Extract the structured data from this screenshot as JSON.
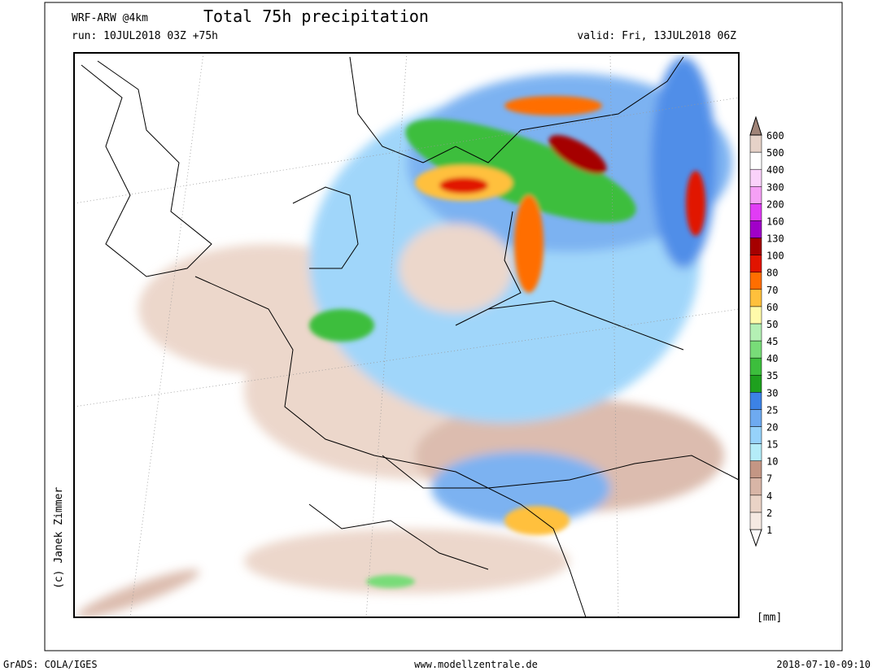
{
  "header": {
    "model": "WRF-ARW @4km",
    "title": "Total 75h precipitation",
    "run": "run: 10JUL2018 03Z +75h",
    "valid": "valid: Fri, 13JUL2018 06Z"
  },
  "copyright": "(c) Janek Zimmer",
  "legend": {
    "unit": "[mm]",
    "levels": [
      1,
      2,
      4,
      7,
      10,
      15,
      20,
      25,
      30,
      35,
      40,
      45,
      50,
      60,
      70,
      80,
      100,
      130,
      160,
      200,
      300,
      400,
      500,
      600
    ],
    "colors": [
      "#fdfbfa",
      "#f5e9e2",
      "#ead3c6",
      "#d8b5a6",
      "#c49684",
      "#b4ecf8",
      "#96d2fa",
      "#6eaaf0",
      "#3c82e6",
      "#1ea01e",
      "#3cbe3c",
      "#78dc78",
      "#b4f0b4",
      "#fffaaa",
      "#ffc03c",
      "#ff6e00",
      "#e11400",
      "#a50000",
      "#a000c8",
      "#e13cf5",
      "#f5a0f5",
      "#fad2fa",
      "#ffffff",
      "#e6d2c8",
      "#a08478"
    ]
  },
  "footer": {
    "software": "GrADS: COLA/IGES",
    "website": "www.modellzentrale.de",
    "timestamp": "2018-07-10-09:10"
  }
}
